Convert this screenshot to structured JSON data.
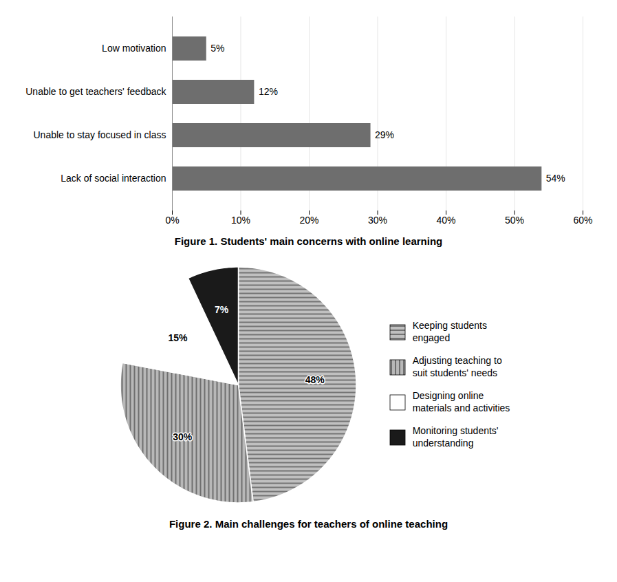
{
  "chart_data": [
    {
      "type": "bar",
      "orientation": "horizontal",
      "title": "Figure 1. Students' main concerns with online learning",
      "categories": [
        "Lack of social interaction",
        "Unable to stay focused in class",
        "Unable to get teachers' feedback",
        "Low motivation"
      ],
      "values": [
        54,
        29,
        12,
        5
      ],
      "value_labels": [
        "54%",
        "29%",
        "12%",
        "5%"
      ],
      "data_labels": true,
      "color": "#6e6e6e",
      "xlim": [
        0,
        60
      ],
      "xticks": [
        {
          "value": 0,
          "label": "0%"
        },
        {
          "value": 10,
          "label": "10%"
        },
        {
          "value": 20,
          "label": "20%"
        },
        {
          "value": 30,
          "label": "30%"
        },
        {
          "value": 40,
          "label": "40%"
        },
        {
          "value": 50,
          "label": "50%"
        },
        {
          "value": 60,
          "label": "60%"
        }
      ],
      "grid": true
    },
    {
      "type": "pie",
      "title": "Figure 2. Main challenges for teachers of online teaching",
      "categories": [
        "Keeping students\nengaged",
        "Adjusting teaching to\nsuit students' needs",
        "Designing online\nmaterials and activities",
        "Monitoring students'\nunderstanding"
      ],
      "values": [
        48,
        30,
        15,
        7
      ],
      "value_labels": [
        "48%",
        "30%",
        "15%",
        "7%"
      ],
      "data_labels": true,
      "colors": [
        "#c0c0c0",
        "#b8b8b8",
        "#ffffff",
        "#1a1a1a"
      ],
      "legend": "right"
    }
  ]
}
